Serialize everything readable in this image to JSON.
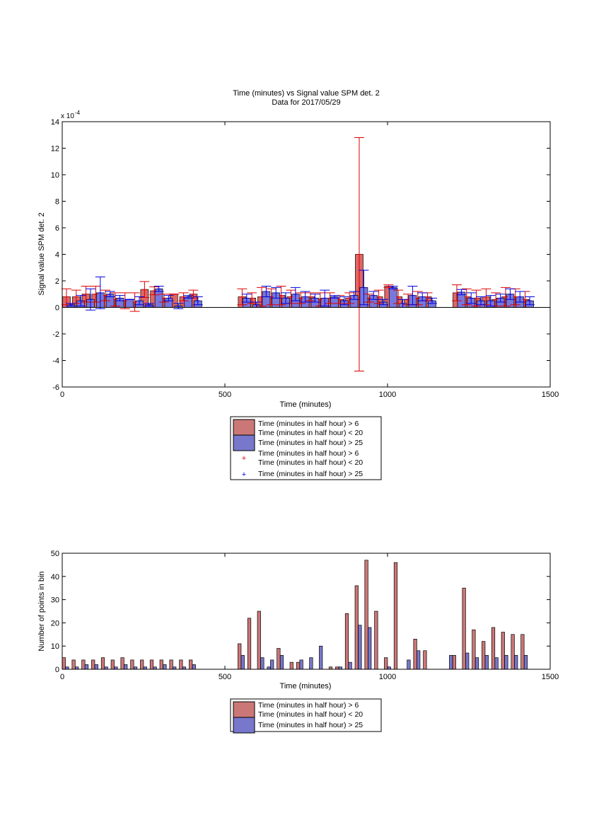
{
  "chart_data": [
    {
      "type": "bar",
      "title": "Time (minutes) vs Signal value SPM det. 2",
      "subtitle": "Data for 2017/05/29",
      "xlabel": "Time (minutes)",
      "ylabel": "Signal value SPM det. 2",
      "y_multiplier": "x 10",
      "y_exponent": "-4",
      "xlim": [
        0,
        1500
      ],
      "ylim": [
        -6,
        14
      ],
      "xticks": [
        "0",
        "500",
        "1000",
        "1500"
      ],
      "yticks": [
        "-6",
        "-4",
        "-2",
        "0",
        "2",
        "4",
        "6",
        "8",
        "10",
        "12",
        "14"
      ],
      "grid": false,
      "legend_position": "below",
      "colors": {
        "red_bar": "#e06666",
        "blue_bar": "#7777dd",
        "red_err": "#dd0000",
        "blue_err": "#0000dd"
      },
      "legend": [
        {
          "label": "Time (minutes in half hour) > 6\nTime (minutes in half hour) < 20",
          "marker": "bar",
          "color": "#cc7777"
        },
        {
          "label": "Time (minutes in half hour) > 25",
          "marker": "bar",
          "color": "#7777cc"
        },
        {
          "label": "Time (minutes in half hour) > 6\nTime (minutes in half hour) < 20",
          "marker": "+",
          "color": "#dd0000"
        },
        {
          "label": "Time (minutes in half hour) > 25",
          "marker": "+",
          "color": "#0000dd"
        }
      ],
      "series": [
        {
          "series_id": "red",
          "x": [
            13,
            43,
            73,
            103,
            133,
            163,
            193,
            223,
            253,
            283,
            313,
            343,
            373,
            403,
            433,
            463,
            493,
            523,
            553,
            583,
            613,
            643,
            673,
            703,
            733,
            763,
            793,
            823,
            853,
            883,
            913,
            943,
            973,
            1003,
            1033,
            1063,
            1093,
            1123,
            1153,
            1183,
            1213,
            1243,
            1273,
            1303,
            1333,
            1363,
            1393,
            1423
          ],
          "y": [
            0.8,
            0.8,
            1.0,
            1.0,
            0.9,
            0.6,
            0.5,
            0.4,
            1.35,
            1.25,
            0.7,
            1.0,
            0.8,
            1.0,
            0,
            0,
            0,
            0,
            0.8,
            0.7,
            0.8,
            0.8,
            0.9,
            0.8,
            0.7,
            0.8,
            0.6,
            0.7,
            0.6,
            0.7,
            4.0,
            0.7,
            0.8,
            1.6,
            0.8,
            0.6,
            0.7,
            0.8,
            0,
            0,
            1.1,
            0.8,
            0.7,
            0.8,
            0.6,
            0.8,
            0.8,
            0.6
          ],
          "err": [
            0.6,
            0.5,
            0.6,
            0.6,
            0.4,
            0.5,
            0.6,
            0.7,
            0.6,
            0.3,
            0.3,
            0.0,
            0.3,
            0.3,
            0,
            0,
            0,
            0,
            0.6,
            0.4,
            0.7,
            0.6,
            0.7,
            0.5,
            0.4,
            0.3,
            0.5,
            0.4,
            0.3,
            0.4,
            8.8,
            0.3,
            0.5,
            0.1,
            0.5,
            0.4,
            0.5,
            0.3,
            0,
            0,
            0.6,
            0.6,
            0.6,
            0.6,
            0.5,
            0.7,
            0.6,
            0.6
          ]
        },
        {
          "series_id": "blue",
          "x": [
            27,
            57,
            87,
            117,
            147,
            177,
            207,
            237,
            267,
            297,
            327,
            357,
            387,
            417,
            447,
            477,
            507,
            537,
            567,
            597,
            627,
            657,
            687,
            717,
            747,
            777,
            807,
            837,
            867,
            897,
            927,
            957,
            987,
            1017,
            1047,
            1077,
            1107,
            1137,
            1167,
            1197,
            1227,
            1257,
            1287,
            1317,
            1347,
            1377,
            1407,
            1437
          ],
          "y": [
            0.2,
            0.5,
            0.6,
            1.1,
            1.0,
            0.7,
            0.6,
            0.5,
            0.2,
            1.4,
            0.7,
            0.1,
            0.8,
            0.5,
            0,
            0,
            0,
            0,
            0.7,
            0.2,
            1.2,
            1.1,
            0.7,
            1.0,
            0.8,
            0.7,
            0.7,
            0.8,
            0.5,
            0.9,
            1.5,
            0.9,
            0.4,
            1.5,
            0.3,
            0.9,
            0.8,
            0.5,
            0,
            0,
            1.15,
            0.7,
            0.5,
            0.5,
            0.7,
            1.0,
            0.8,
            0.5
          ],
          "err": [
            0.1,
            0.4,
            0.8,
            1.2,
            0.2,
            0.2,
            0.0,
            0.3,
            0.1,
            0.2,
            0.2,
            0.2,
            0.1,
            0.3,
            0,
            0,
            0,
            0,
            0.3,
            0.2,
            0.4,
            0.4,
            0.4,
            0.5,
            0.4,
            0.3,
            0.6,
            0.1,
            0.3,
            0.3,
            1.3,
            0.3,
            0.2,
            0.1,
            0.3,
            0.7,
            0.3,
            0.2,
            0,
            0,
            0.2,
            0.4,
            0.3,
            0.4,
            0.3,
            0.4,
            0.4,
            0.3
          ]
        }
      ]
    },
    {
      "type": "bar",
      "xlabel": "Time (minutes)",
      "ylabel": "Number of points in bin",
      "xlim": [
        0,
        1500
      ],
      "ylim": [
        0,
        50
      ],
      "xticks": [
        "0",
        "500",
        "1000",
        "1500"
      ],
      "yticks": [
        "0",
        "10",
        "20",
        "30",
        "40",
        "50"
      ],
      "grid": false,
      "legend_position": "below",
      "colors": {
        "red_bar": "#cc7777",
        "blue_bar": "#7777cc"
      },
      "legend": [
        {
          "label": "Time (minutes in half hour) > 6\nTime (minutes in half hour) < 20",
          "marker": "bar",
          "color": "#cc7777"
        },
        {
          "label": "Time (minutes in half hour) > 25",
          "marker": "bar",
          "color": "#7777cc"
        }
      ],
      "series": [
        {
          "series_id": "red",
          "x": [
            5,
            35,
            65,
            95,
            125,
            155,
            185,
            215,
            245,
            275,
            305,
            335,
            365,
            395,
            545,
            575,
            605,
            665,
            705,
            725,
            765,
            825,
            845,
            875,
            905,
            935,
            965,
            995,
            1025,
            1085,
            1115,
            1205,
            1235,
            1265,
            1295,
            1325,
            1355,
            1385,
            1415
          ],
          "y": [
            5,
            4,
            4,
            4,
            5,
            4,
            5,
            4,
            4,
            4,
            4,
            4,
            4,
            4,
            11,
            22,
            25,
            9,
            3,
            3,
            1,
            1,
            1,
            24,
            36,
            47,
            25,
            5,
            46,
            13,
            8,
            6,
            35,
            17,
            12,
            18,
            16,
            15,
            15
          ]
        },
        {
          "series_id": "blue",
          "x": [
            15,
            45,
            75,
            105,
            135,
            165,
            195,
            225,
            255,
            285,
            315,
            345,
            375,
            405,
            555,
            615,
            635,
            645,
            675,
            735,
            765,
            795,
            855,
            885,
            915,
            945,
            1005,
            1065,
            1095,
            1195,
            1245,
            1275,
            1305,
            1335,
            1365,
            1395,
            1425
          ],
          "y": [
            1,
            1,
            2,
            2,
            1,
            1,
            2,
            1,
            1,
            1,
            2,
            1,
            1,
            2,
            6,
            5,
            1,
            4,
            6,
            4,
            5,
            10,
            1,
            3,
            19,
            18,
            1,
            4,
            8,
            6,
            7,
            5,
            6,
            5,
            6,
            6,
            6
          ]
        }
      ]
    }
  ]
}
